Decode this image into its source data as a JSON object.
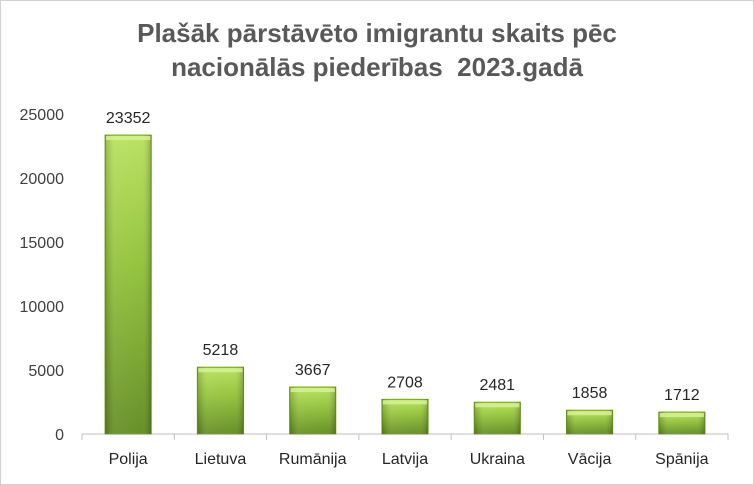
{
  "chart_data": {
    "type": "bar",
    "title_lines": [
      "Plašāk pārstāvēto imigrantu skaits pēc",
      "nacionālās piederības  2023.gadā"
    ],
    "categories": [
      "Polija",
      "Lietuva",
      "Rumānija",
      "Latvija",
      "Ukraina",
      "Vācija",
      "Spānija"
    ],
    "values": [
      23352,
      5218,
      3667,
      2708,
      2481,
      1858,
      1712
    ],
    "data_labels": [
      "23352",
      "5218",
      "3667",
      "2708",
      "2481",
      "1858",
      "1712"
    ],
    "ylim": [
      0,
      25000
    ],
    "yticks": [
      0,
      5000,
      10000,
      15000,
      20000,
      25000
    ],
    "ytick_labels": [
      "0",
      "5000",
      "10000",
      "15000",
      "20000",
      "25000"
    ],
    "grid": false,
    "legend": "none",
    "colors": {
      "bar_light": "#b6e05a",
      "bar_mid": "#8dbf34",
      "bar_dark": "#5f8a1e",
      "axis": "#bfbfbf"
    }
  }
}
